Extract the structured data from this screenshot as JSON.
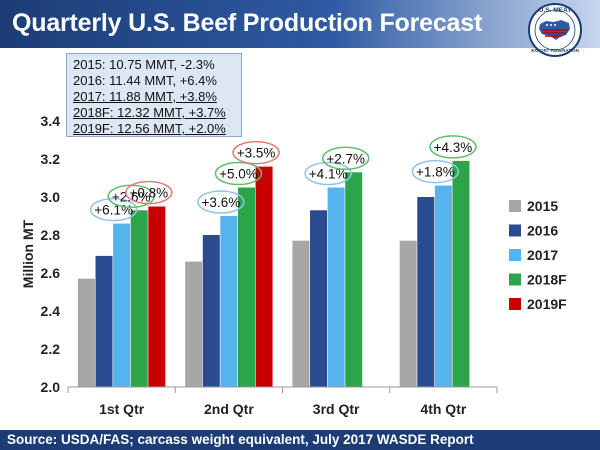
{
  "header": {
    "title": "Quarterly U.S. Beef Production Forecast",
    "logo_top": "U.S. MEAT",
    "logo_bottom": "EXPORT FEDERATION"
  },
  "summary_box": {
    "lines": [
      "2015: 10.75 MMT, -2.3%",
      "2016: 11.44 MMT, +6.4%",
      "2017: 11.88 MMT, +3.8%",
      "2018F: 12.32 MMT, +3.7%",
      "2019F: 12.56 MMT, +2.0%"
    ]
  },
  "footer": {
    "source": "Source: USDA/FAS; carcass weight equivalent, July 2017 WASDE Report"
  },
  "chart_data": {
    "type": "bar",
    "title": "Quarterly U.S. Beef Production Forecast",
    "xlabel": "",
    "ylabel": "Million MT",
    "ylim": [
      2.0,
      3.4
    ],
    "yticks": [
      "2.0",
      "2.2",
      "2.4",
      "2.6",
      "2.8",
      "3.0",
      "3.2",
      "3.4"
    ],
    "categories": [
      "1st Qtr",
      "2nd Qtr",
      "3rd Qtr",
      "4th Qtr"
    ],
    "grid": false,
    "legend_position": "right",
    "series": [
      {
        "name": "2015",
        "color": "#a6a6a6",
        "values": [
          2.57,
          2.66,
          2.77,
          2.77
        ]
      },
      {
        "name": "2016",
        "color": "#2a4b8f",
        "values": [
          2.69,
          2.8,
          2.93,
          3.0
        ]
      },
      {
        "name": "2017",
        "color": "#55b4ee",
        "values": [
          2.86,
          2.9,
          3.05,
          3.06
        ]
      },
      {
        "name": "2018F",
        "color": "#2ca44a",
        "values": [
          2.93,
          3.05,
          3.13,
          3.19
        ]
      },
      {
        "name": "2019F",
        "color": "#c80000",
        "values": [
          2.95,
          3.16,
          null,
          null
        ]
      }
    ],
    "annotations": [
      {
        "text": "+6.1%",
        "category": 0,
        "series": "2017",
        "border": "#8fc3ea"
      },
      {
        "text": "+2.6%",
        "category": 0,
        "series": "2018F",
        "border": "#5cbf6a"
      },
      {
        "text": "+0.8%",
        "category": 0,
        "series": "2019F",
        "border": "#e37b7b"
      },
      {
        "text": "+3.6%",
        "category": 1,
        "series": "2017",
        "border": "#8fc3ea"
      },
      {
        "text": "+5.0%",
        "category": 1,
        "series": "2018F",
        "border": "#5cbf6a"
      },
      {
        "text": "+3.5%",
        "category": 1,
        "series": "2019F",
        "border": "#e37b7b"
      },
      {
        "text": "+4.1%",
        "category": 2,
        "series": "2017",
        "border": "#8fc3ea"
      },
      {
        "text": "+2.7%",
        "category": 2,
        "series": "2018F",
        "border": "#5cbf6a"
      },
      {
        "text": "+1.8%",
        "category": 3,
        "series": "2017",
        "border": "#8fc3ea"
      },
      {
        "text": "+4.3%",
        "category": 3,
        "series": "2018F",
        "border": "#5cbf6a"
      }
    ]
  }
}
